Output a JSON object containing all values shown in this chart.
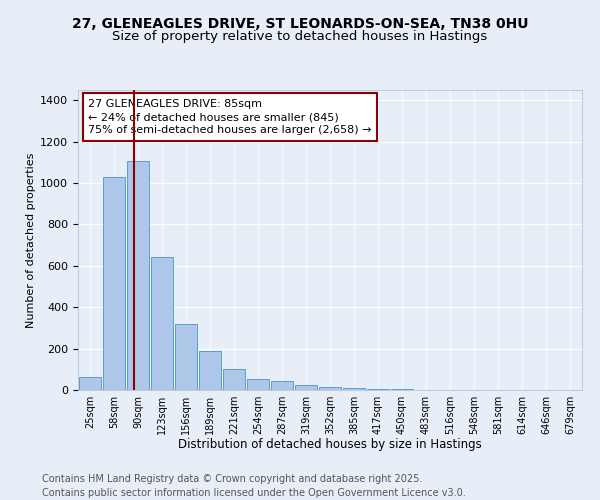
{
  "title_line1": "27, GLENEAGLES DRIVE, ST LEONARDS-ON-SEA, TN38 0HU",
  "title_line2": "Size of property relative to detached houses in Hastings",
  "xlabel": "Distribution of detached houses by size in Hastings",
  "ylabel": "Number of detached properties",
  "categories": [
    "25sqm",
    "58sqm",
    "90sqm",
    "123sqm",
    "156sqm",
    "189sqm",
    "221sqm",
    "254sqm",
    "287sqm",
    "319sqm",
    "352sqm",
    "385sqm",
    "417sqm",
    "450sqm",
    "483sqm",
    "516sqm",
    "548sqm",
    "581sqm",
    "614sqm",
    "646sqm",
    "679sqm"
  ],
  "values": [
    65,
    1030,
    1105,
    645,
    320,
    190,
    100,
    55,
    45,
    25,
    15,
    10,
    5,
    3,
    2,
    1,
    0,
    0,
    0,
    0,
    0
  ],
  "bar_color": "#aec6e8",
  "bar_edgecolor": "#5a9fd4",
  "redline_x": 1.82,
  "annotation_text": "27 GLENEAGLES DRIVE: 85sqm\n← 24% of detached houses are smaller (845)\n75% of semi-detached houses are larger (2,658) →",
  "ylim": [
    0,
    1450
  ],
  "yticks": [
    0,
    200,
    400,
    600,
    800,
    1000,
    1200,
    1400
  ],
  "background_color": "#e8eef7",
  "plot_background": "#e8eef7",
  "footer_line1": "Contains HM Land Registry data © Crown copyright and database right 2025.",
  "footer_line2": "Contains public sector information licensed under the Open Government Licence v3.0.",
  "title_fontsize": 10,
  "subtitle_fontsize": 9.5,
  "annotation_fontsize": 8,
  "footer_fontsize": 7
}
